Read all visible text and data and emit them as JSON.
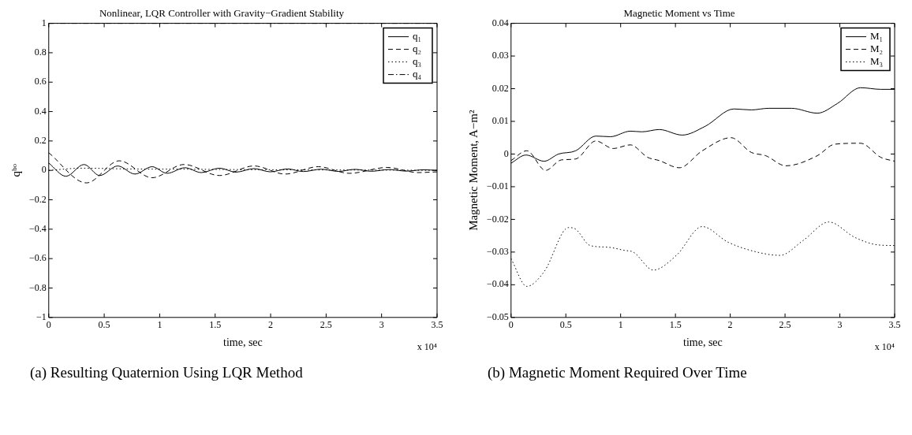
{
  "chart_data": [
    {
      "type": "line",
      "title": "Nonlinear, LQR Controller with Gravity−Gradient Stability",
      "xlabel": "time, sec",
      "ylabel": "qᵇᵒ",
      "xlim": [
        0,
        3.5
      ],
      "xticks": [
        0,
        0.5,
        1,
        1.5,
        2,
        2.5,
        3,
        3.5
      ],
      "ylim": [
        -1,
        1
      ],
      "yticks": [
        -1,
        -0.8,
        -0.6,
        -0.4,
        -0.2,
        0,
        0.2,
        0.4,
        0.6,
        0.8,
        1
      ],
      "grid": false,
      "legend": "top right",
      "marker": "none",
      "annotations": [
        "x 10⁴",
        "(a) Resulting Quaternion Using LQR Method"
      ],
      "series": [
        {
          "name": "q₁",
          "color": "#000000",
          "line_style": "solid",
          "x": [
            0,
            0.155,
            0.318,
            0.459,
            0.622,
            0.777,
            0.932,
            1.066,
            1.228,
            1.376,
            1.539,
            1.687,
            1.85,
            1.998,
            2.153,
            2.294,
            2.457,
            2.612,
            2.76,
            2.908,
            3.07,
            3.22,
            3.38,
            3.5
          ],
          "values": [
            0.05,
            -0.04,
            0.04,
            -0.035,
            0.03,
            -0.025,
            0.025,
            -0.02,
            0.018,
            -0.015,
            0.015,
            -0.012,
            0.012,
            -0.01,
            0.01,
            -0.008,
            0.008,
            -0.007,
            0.007,
            -0.006,
            0.006,
            -0.005,
            0.004,
            0
          ]
        },
        {
          "name": "q₂",
          "color": "#000000",
          "line_style": "dashed",
          "x": [
            0,
            0.34,
            0.636,
            0.932,
            1.22,
            1.54,
            1.85,
            2.13,
            2.43,
            2.71,
            3.05,
            3.33,
            3.5
          ],
          "values": [
            0.12,
            -0.085,
            0.065,
            -0.05,
            0.04,
            -0.035,
            0.03,
            -0.025,
            0.025,
            -0.02,
            0.02,
            -0.015,
            -0.01
          ]
        },
        {
          "name": "q₃",
          "color": "#000000",
          "line_style": "dotted",
          "x": [
            0,
            0.3,
            0.7,
            1.2,
            1.8,
            2.5,
            3,
            3.5
          ],
          "values": [
            0,
            0.015,
            0.01,
            0.008,
            0.005,
            0.003,
            0.002,
            0
          ]
        },
        {
          "name": "q₄",
          "color": "#000000",
          "line_style": "dashdot",
          "x": [
            0,
            0.5,
            1,
            1.5,
            2,
            2.5,
            3,
            3.5
          ],
          "values": [
            1,
            1,
            1,
            1,
            1,
            1,
            1,
            1
          ]
        }
      ]
    },
    {
      "type": "line",
      "title": "Magnetic Moment vs Time",
      "xlabel": "time, sec",
      "ylabel": "Magnetic Moment, A−m²",
      "xlim": [
        0,
        3.5
      ],
      "xticks": [
        0,
        0.5,
        1,
        1.5,
        2,
        2.5,
        3,
        3.5
      ],
      "ylim": [
        -0.05,
        0.04
      ],
      "yticks": [
        -0.05,
        -0.04,
        -0.03,
        -0.02,
        -0.01,
        0,
        0.01,
        0.02,
        0.03,
        0.04
      ],
      "grid": false,
      "legend": "top right",
      "marker": "none",
      "annotations": [
        "x 10⁴",
        "(b) Magnetic Moment Required Over Time"
      ],
      "series": [
        {
          "name": "M₁",
          "color": "#000000",
          "line_style": "solid",
          "x": [
            0,
            0.136,
            0.302,
            0.433,
            0.59,
            0.774,
            0.906,
            1.089,
            1.194,
            1.352,
            1.562,
            1.772,
            2.034,
            2.192,
            2.349,
            2.559,
            2.795,
            2.979,
            3.189,
            3.373,
            3.5
          ],
          "values": [
            -0.0028,
            -0.0003,
            -0.0022,
            0,
            0.001,
            0.0055,
            0.0053,
            0.007,
            0.0068,
            0.0075,
            0.0058,
            0.0085,
            0.0138,
            0.0135,
            0.014,
            0.014,
            0.0125,
            0.0155,
            0.0203,
            0.0198,
            0.0198
          ]
        },
        {
          "name": "M₂",
          "color": "#000000",
          "line_style": "dashed",
          "x": [
            0,
            0.144,
            0.315,
            0.459,
            0.59,
            0.774,
            0.932,
            1.089,
            1.246,
            1.352,
            1.535,
            1.745,
            2.007,
            2.192,
            2.323,
            2.507,
            2.795,
            2.952,
            3.189,
            3.373,
            3.5
          ],
          "values": [
            -0.002,
            0.001,
            -0.005,
            -0.0018,
            -0.0015,
            0.004,
            0.0017,
            0.0028,
            -0.001,
            -0.002,
            -0.0042,
            0.001,
            0.005,
            0.0005,
            -0.0005,
            -0.0036,
            -0.0005,
            0.003,
            0.0033,
            -0.001,
            -0.0022
          ]
        },
        {
          "name": "M₃",
          "color": "#000000",
          "line_style": "dotted",
          "x": [
            0,
            0.144,
            0.302,
            0.525,
            0.59,
            0.722,
            0.879,
            1.037,
            1.115,
            1.299,
            1.509,
            1.745,
            1.981,
            2.244,
            2.454,
            2.664,
            2.9,
            3.136,
            3.346,
            3.5
          ],
          "values": [
            -0.032,
            -0.0405,
            -0.036,
            -0.0225,
            -0.023,
            -0.028,
            -0.0285,
            -0.0295,
            -0.03,
            -0.0355,
            -0.031,
            -0.0222,
            -0.027,
            -0.03,
            -0.031,
            -0.0265,
            -0.0208,
            -0.0255,
            -0.0278,
            -0.028
          ]
        }
      ]
    }
  ]
}
